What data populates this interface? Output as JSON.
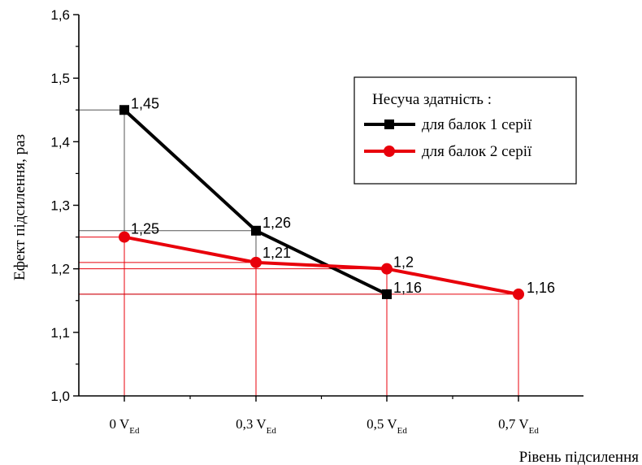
{
  "chart_data": {
    "type": "line",
    "xlabel": "Рівень підсилення",
    "ylabel": "Ефект підсилення, раз",
    "ylim": [
      1.0,
      1.6
    ],
    "yticks": [
      "1,0",
      "1,1",
      "1,2",
      "1,3",
      "1,4",
      "1,5",
      "1,6"
    ],
    "categories": [
      {
        "main": "0 V",
        "sub": "Ed"
      },
      {
        "main": "0,3 V",
        "sub": "Ed"
      },
      {
        "main": "0,5 V",
        "sub": "Ed"
      },
      {
        "main": "0,7 V",
        "sub": "Ed"
      }
    ],
    "legend": {
      "title": "Несуча здатність :",
      "placement": "top-right"
    },
    "series": [
      {
        "name": "для балок 1 серії",
        "color": "#000000",
        "marker": "square",
        "values": [
          1.45,
          1.26,
          1.16,
          null
        ],
        "labels": [
          "1,45",
          "1,26",
          "1,16",
          null
        ],
        "guide_color": "#555555"
      },
      {
        "name": "для балок 2 серії",
        "color": "#e8000b",
        "marker": "circle",
        "values": [
          1.25,
          1.21,
          1.2,
          1.16
        ],
        "labels": [
          "1,25",
          "1,21",
          "1,2",
          "1,16"
        ],
        "guide_color": "#e8000b"
      }
    ]
  }
}
